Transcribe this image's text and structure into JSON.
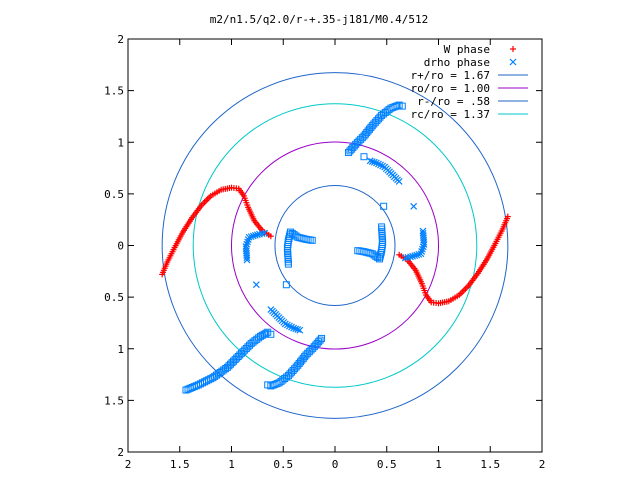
{
  "chart_data": {
    "type": "scatter",
    "title": "m2/n1.5/q2.0/r-+.35-j181/M0.4/512",
    "xlim": [
      -2,
      2
    ],
    "ylim": [
      -2,
      2
    ],
    "x_ticks": [
      "2",
      "1.5",
      "1",
      "0.5",
      "0",
      "0.5",
      "1",
      "1.5",
      "2"
    ],
    "y_ticks": [
      "2",
      "1.5",
      "1",
      "0.5",
      "0",
      "0.5",
      "1",
      "1.5",
      "2"
    ],
    "grid": false,
    "legend_position": "top-right",
    "legend": [
      {
        "label": "W phase",
        "kind": "points",
        "marker": "plus",
        "color": "#ff0000"
      },
      {
        "label": "drho phase",
        "kind": "points",
        "marker": "cross",
        "color": "#0080ff"
      },
      {
        "label": "r+/ro = 1.67",
        "kind": "line",
        "color": "#1e64c8"
      },
      {
        "label": "ro/ro = 1.00",
        "kind": "line",
        "color": "#9b00c8"
      },
      {
        "label": "r-/ro = .58",
        "kind": "line",
        "color": "#1e64c8"
      },
      {
        "label": "rc/ro = 1.37",
        "kind": "line",
        "color": "#00c8c8"
      }
    ],
    "circles": [
      {
        "name": "r+/ro = 1.67",
        "radius": 1.67,
        "color": "#1e64c8"
      },
      {
        "name": "rc/ro = 1.37",
        "radius": 1.37,
        "color": "#00c8c8"
      },
      {
        "name": "ro/ro = 1.00",
        "radius": 1.0,
        "color": "#9b00c8"
      },
      {
        "name": "r-/ro = .58",
        "radius": 0.58,
        "color": "#1e64c8"
      }
    ],
    "series": [
      {
        "name": "W phase",
        "marker": "plus",
        "color": "#ff0000",
        "points": [
          [
            -1.67,
            -0.28
          ],
          [
            -1.62,
            -0.16
          ],
          [
            -1.55,
            -0.02
          ],
          [
            -1.47,
            0.13
          ],
          [
            -1.38,
            0.27
          ],
          [
            -1.29,
            0.39
          ],
          [
            -1.2,
            0.48
          ],
          [
            -1.1,
            0.54
          ],
          [
            -1.0,
            0.56
          ],
          [
            -0.93,
            0.55
          ],
          [
            -0.88,
            0.48
          ],
          [
            -0.84,
            0.37
          ],
          [
            -0.78,
            0.24
          ],
          [
            -0.7,
            0.14
          ],
          [
            -0.62,
            0.09
          ],
          [
            1.67,
            0.28
          ],
          [
            1.62,
            0.16
          ],
          [
            1.55,
            0.02
          ],
          [
            1.47,
            -0.13
          ],
          [
            1.38,
            -0.27
          ],
          [
            1.29,
            -0.39
          ],
          [
            1.2,
            -0.48
          ],
          [
            1.1,
            -0.54
          ],
          [
            1.0,
            -0.56
          ],
          [
            0.93,
            -0.55
          ],
          [
            0.88,
            -0.48
          ],
          [
            0.84,
            -0.37
          ],
          [
            0.78,
            -0.24
          ],
          [
            0.7,
            -0.14
          ],
          [
            0.62,
            -0.09
          ]
        ]
      },
      {
        "name": "drho phase",
        "marker": "square",
        "color": "#0080ff",
        "points": [
          [
            -1.44,
            -1.4
          ],
          [
            -1.32,
            -1.35
          ],
          [
            -1.18,
            -1.28
          ],
          [
            -1.04,
            -1.18
          ],
          [
            -0.92,
            -1.06
          ],
          [
            -0.81,
            -0.95
          ],
          [
            -0.72,
            -0.88
          ],
          [
            -0.65,
            -0.84
          ],
          [
            -0.62,
            -0.86
          ],
          [
            -0.47,
            -0.38
          ],
          [
            -0.45,
            -0.18
          ],
          [
            -0.46,
            -0.03
          ],
          [
            -0.45,
            0.05
          ],
          [
            -0.43,
            0.13
          ],
          [
            -0.36,
            0.08
          ],
          [
            -0.28,
            0.06
          ],
          [
            -0.22,
            0.05
          ],
          [
            0.47,
            0.38
          ],
          [
            0.45,
            0.18
          ],
          [
            0.46,
            0.03
          ],
          [
            0.45,
            -0.05
          ],
          [
            0.43,
            -0.13
          ],
          [
            0.36,
            -0.08
          ],
          [
            0.28,
            -0.06
          ],
          [
            0.22,
            -0.05
          ],
          [
            0.13,
            0.9
          ],
          [
            0.2,
            0.98
          ],
          [
            0.28,
            1.06
          ],
          [
            0.36,
            1.16
          ],
          [
            0.45,
            1.26
          ],
          [
            0.54,
            1.33
          ],
          [
            0.62,
            1.36
          ],
          [
            0.65,
            1.35
          ],
          [
            0.28,
            0.86
          ],
          [
            -0.13,
            -0.9
          ],
          [
            -0.2,
            -0.98
          ],
          [
            -0.28,
            -1.06
          ],
          [
            -0.36,
            -1.16
          ],
          [
            -0.45,
            -1.26
          ],
          [
            -0.54,
            -1.33
          ],
          [
            -0.62,
            -1.36
          ],
          [
            -0.65,
            -1.35
          ]
        ]
      },
      {
        "name": "drho phase",
        "marker": "cross",
        "color": "#0080ff",
        "points": [
          [
            0.34,
            0.82
          ],
          [
            0.4,
            0.8
          ],
          [
            0.48,
            0.76
          ],
          [
            0.62,
            0.62
          ],
          [
            0.76,
            0.38
          ],
          [
            0.85,
            0.14
          ],
          [
            0.86,
            0.01
          ],
          [
            0.83,
            -0.08
          ],
          [
            0.73,
            -0.11
          ],
          [
            0.68,
            -0.12
          ],
          [
            -0.34,
            -0.82
          ],
          [
            -0.4,
            -0.8
          ],
          [
            -0.48,
            -0.76
          ],
          [
            -0.62,
            -0.62
          ],
          [
            -0.76,
            -0.38
          ],
          [
            -0.85,
            -0.14
          ],
          [
            -0.86,
            -0.01
          ],
          [
            -0.83,
            0.08
          ],
          [
            -0.73,
            0.11
          ],
          [
            -0.68,
            0.12
          ]
        ]
      }
    ]
  }
}
